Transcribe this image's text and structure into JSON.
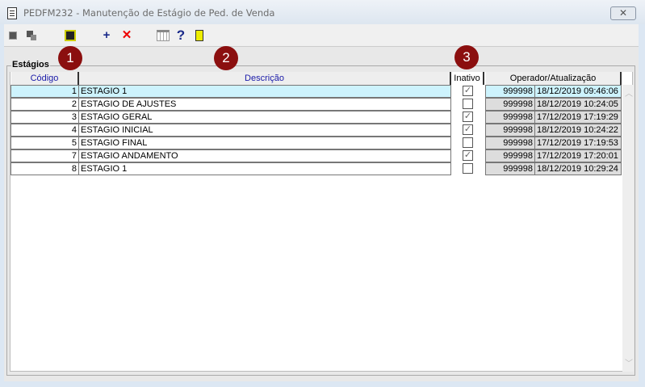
{
  "window": {
    "title": "PEDFM232 - Manutenção de Estágio de Ped. de Venda",
    "close": "✕"
  },
  "group": {
    "label": "Estágios"
  },
  "columns": {
    "codigo": "Código",
    "descricao": "Descrição",
    "inativo": "Inativo",
    "operador": "Operador/Atualização"
  },
  "rows": [
    {
      "codigo": "1",
      "descricao": "ESTAGIO 1",
      "inativo": true,
      "operador": "999998",
      "data": "18/12/2019 09:46:06",
      "selected": true
    },
    {
      "codigo": "2",
      "descricao": "ESTAGIO DE AJUSTES",
      "inativo": false,
      "operador": "999998",
      "data": "18/12/2019 10:24:05"
    },
    {
      "codigo": "3",
      "descricao": "ESTAGIO GERAL",
      "inativo": true,
      "operador": "999998",
      "data": "17/12/2019 17:19:29"
    },
    {
      "codigo": "4",
      "descricao": "ESTAGIO INICIAL",
      "inativo": true,
      "operador": "999998",
      "data": "18/12/2019 10:24:22"
    },
    {
      "codigo": "5",
      "descricao": "ESTAGIO FINAL",
      "inativo": false,
      "operador": "999998",
      "data": "17/12/2019 17:19:53"
    },
    {
      "codigo": "7",
      "descricao": "ESTAGIO ANDAMENTO",
      "inativo": true,
      "operador": "999998",
      "data": "17/12/2019 17:20:01"
    },
    {
      "codigo": "8",
      "descricao": "ESTAGIO 1",
      "inativo": false,
      "operador": "999998",
      "data": "18/12/2019 10:29:24"
    }
  ],
  "badges": [
    "1",
    "2",
    "3"
  ],
  "toolbar": {
    "add": "+",
    "delete": "✕",
    "help": "?"
  },
  "colors": {
    "selected": "#cdf3fd",
    "header_text": "#1a1aa8",
    "badge": "#8b0f0f"
  }
}
